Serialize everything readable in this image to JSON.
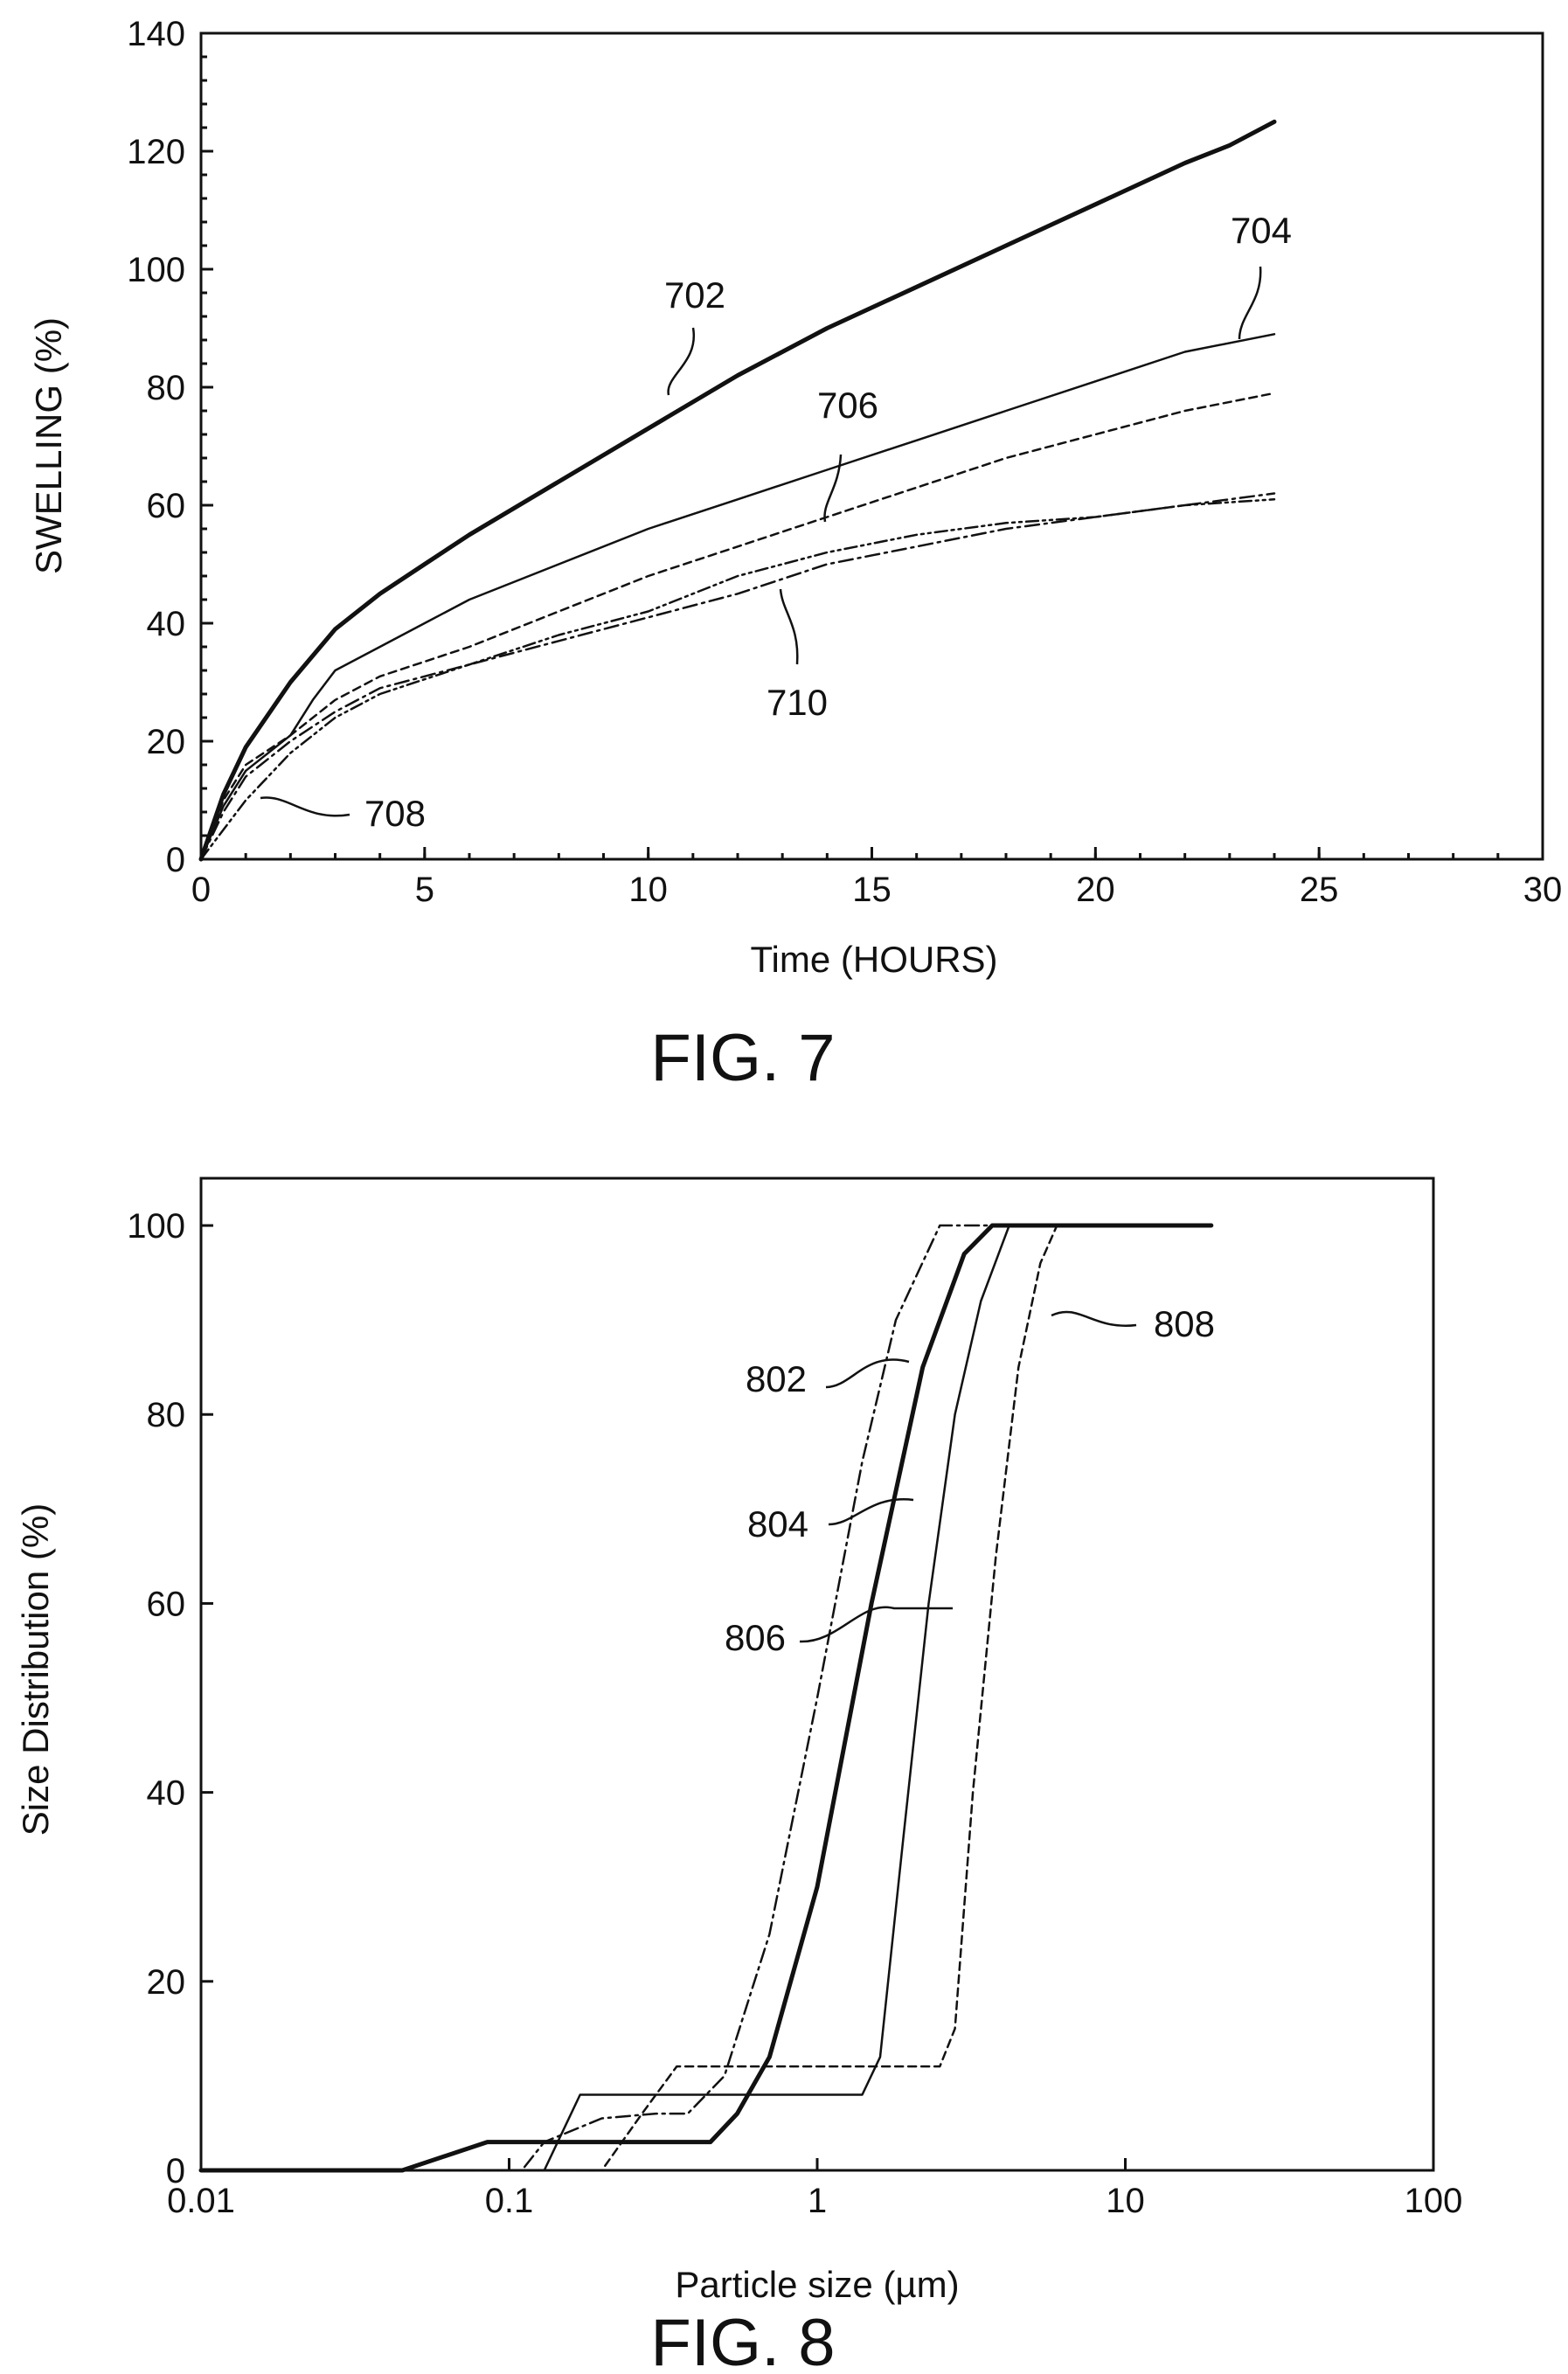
{
  "chart_data": [
    {
      "type": "line",
      "figure_label": "FIG. 7",
      "xlabel": "Time (HOURS)",
      "ylabel": "SWELLING (%)",
      "xlim": [
        0,
        30
      ],
      "ylim": [
        0,
        140
      ],
      "x_ticks": [
        "0",
        "5",
        "10",
        "15",
        "20",
        "25",
        "30"
      ],
      "y_ticks": [
        "0",
        "20",
        "40",
        "60",
        "80",
        "100",
        "120",
        "140"
      ],
      "grid": false,
      "series": [
        {
          "name": "702",
          "style": "thick-solid",
          "x": [
            0,
            0.5,
            1,
            2,
            3,
            4,
            5,
            6,
            8,
            10,
            12,
            14,
            16,
            18,
            20,
            22,
            23,
            24
          ],
          "y": [
            0,
            11,
            19,
            30,
            39,
            45,
            50,
            55,
            64,
            73,
            82,
            90,
            97,
            104,
            111,
            118,
            121,
            125
          ]
        },
        {
          "name": "704",
          "style": "thin-solid",
          "x": [
            0,
            0.5,
            1,
            2,
            2.5,
            3,
            4,
            5,
            6,
            8,
            10,
            12,
            14,
            16,
            18,
            20,
            22,
            24
          ],
          "y": [
            0,
            9,
            15,
            21,
            27,
            32,
            36,
            40,
            44,
            50,
            56,
            61,
            66,
            71,
            76,
            81,
            86,
            89
          ]
        },
        {
          "name": "706",
          "style": "dashed",
          "x": [
            0,
            0.5,
            1,
            2,
            3,
            4,
            6,
            8,
            10,
            12,
            14,
            16,
            18,
            20,
            22,
            24
          ],
          "y": [
            0,
            10,
            16,
            21,
            27,
            31,
            36,
            42,
            48,
            53,
            58,
            63,
            68,
            72,
            76,
            79
          ]
        },
        {
          "name": "708",
          "style": "dash-dot-dot",
          "x": [
            0,
            0.5,
            1,
            2,
            3,
            4,
            6,
            8,
            10,
            12,
            14,
            16,
            18,
            20,
            22,
            24
          ],
          "y": [
            0,
            5,
            10,
            18,
            24,
            28,
            33,
            38,
            42,
            48,
            52,
            55,
            57,
            58,
            60,
            61
          ]
        },
        {
          "name": "710",
          "style": "dash-dot",
          "x": [
            0,
            0.5,
            1,
            2,
            3,
            4,
            6,
            8,
            10,
            12,
            14,
            16,
            18,
            20,
            22,
            24
          ],
          "y": [
            0,
            8,
            14,
            20,
            25,
            29,
            33,
            37,
            41,
            45,
            50,
            53,
            56,
            58,
            60,
            62
          ]
        }
      ],
      "annotations": [
        "702",
        "704",
        "706",
        "708",
        "710"
      ]
    },
    {
      "type": "line",
      "figure_label": "FIG. 8",
      "xlabel": "Particle size (µm)",
      "ylabel": "Size Distribution (%)",
      "xscale": "log",
      "xlim": [
        0.01,
        100
      ],
      "ylim": [
        0,
        105
      ],
      "x_ticks": [
        "0.01",
        "0.1",
        "1",
        "10",
        "100"
      ],
      "y_ticks": [
        "0",
        "20",
        "40",
        "60",
        "80",
        "100"
      ],
      "grid": false,
      "series": [
        {
          "name": "802",
          "style": "dash-dot",
          "x": [
            0.01,
            0.11,
            0.13,
            0.2,
            0.3,
            0.38,
            0.5,
            0.7,
            1.0,
            1.4,
            1.8,
            2.5,
            19
          ],
          "y": [
            0,
            0,
            3,
            5.5,
            6,
            6,
            10,
            25,
            50,
            75,
            90,
            100,
            100
          ]
        },
        {
          "name": "804",
          "style": "thick-solid",
          "x": [
            0.01,
            0.045,
            0.085,
            0.2,
            0.45,
            0.55,
            0.7,
            1.0,
            1.5,
            2.2,
            3.0,
            3.7,
            19
          ],
          "y": [
            0,
            0,
            3,
            3,
            3,
            6,
            12,
            30,
            60,
            85,
            97,
            100,
            100
          ]
        },
        {
          "name": "806",
          "style": "thin-solid",
          "x": [
            0.01,
            0.13,
            0.17,
            0.3,
            1.0,
            1.4,
            1.6,
            1.9,
            2.3,
            2.8,
            3.4,
            4.2,
            19
          ],
          "y": [
            0,
            0,
            8,
            8,
            8,
            8,
            12,
            35,
            60,
            80,
            92,
            100,
            100
          ]
        },
        {
          "name": "808",
          "style": "dashed",
          "x": [
            0.01,
            0.2,
            0.27,
            0.35,
            1.0,
            2.5,
            2.8,
            3.2,
            3.8,
            4.5,
            5.3,
            6.0,
            19
          ],
          "y": [
            0,
            0,
            6,
            11,
            11,
            11,
            15,
            40,
            65,
            85,
            96,
            100,
            100
          ]
        }
      ],
      "annotations": [
        "802",
        "804",
        "806",
        "808"
      ]
    }
  ]
}
